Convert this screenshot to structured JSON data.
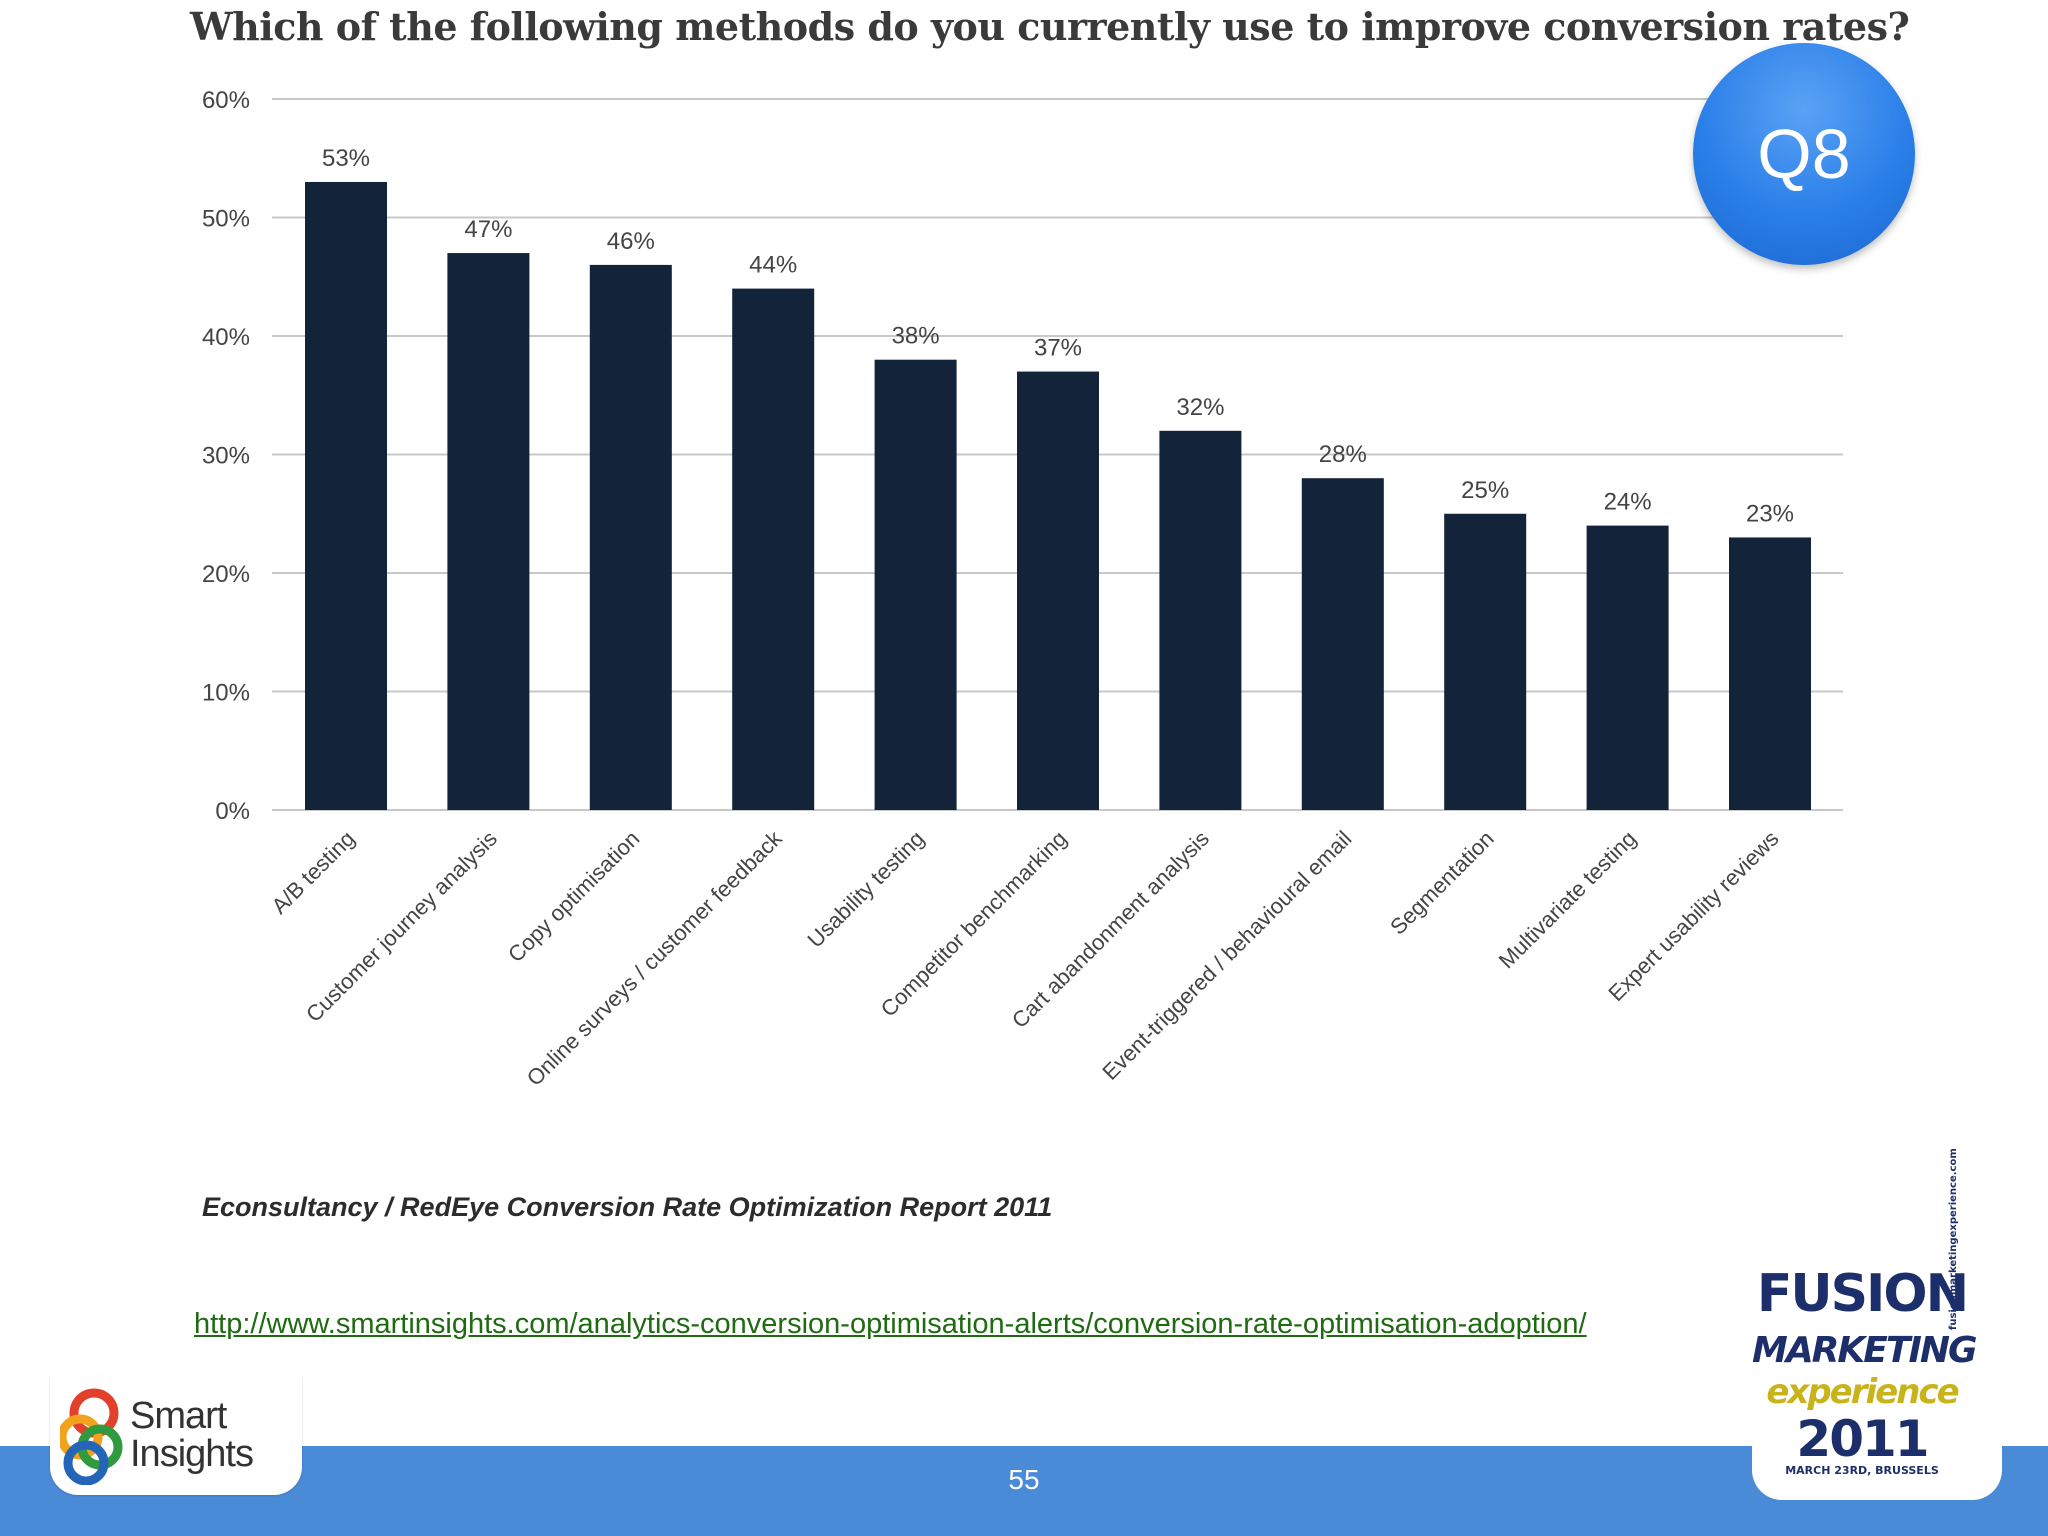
{
  "slide": {
    "badge": "Q8",
    "source_note": "Econsultancy / RedEye Conversion Rate Optimization  Report 2011",
    "link_text": "http://www.smartinsights.com/analytics-conversion-optimisation-alerts/conversion-rate-optimisation-adoption/",
    "page_number": "55",
    "logo_left": {
      "line1": "Smart",
      "line2": "Insights"
    },
    "logo_right": {
      "line1": "FUSION",
      "line2": "MARKETING",
      "line3": "experience",
      "year": "2011",
      "date": "MARCH 23RD, BRUSSELS",
      "side_url": "fusionmarketingexperience.com"
    }
  },
  "colors": {
    "bar": "#13233a",
    "grid": "#c8c8c8",
    "footer": "#4a8bd8",
    "badge": "#2a7fe8",
    "link": "#1f6b12"
  },
  "chart_data": {
    "type": "bar",
    "title": "Which of the following methods do you currently use to improve conversion rates?",
    "xlabel": "",
    "ylabel": "",
    "ylim": [
      0,
      60
    ],
    "yticks": [
      "0%",
      "10%",
      "20%",
      "30%",
      "40%",
      "50%",
      "60%"
    ],
    "grid": true,
    "categories": [
      "A/B testing",
      "Customer journey analysis",
      "Copy optimisation",
      "Online surveys / customer feedback",
      "Usability testing",
      "Competitor benchmarking",
      "Cart abandonment analysis",
      "Event-triggered / behavioural email",
      "Segmentation",
      "Multivariate testing",
      "Expert usability reviews"
    ],
    "values": [
      53,
      47,
      46,
      44,
      38,
      37,
      32,
      28,
      25,
      24,
      23
    ],
    "value_labels": [
      "53%",
      "47%",
      "46%",
      "44%",
      "38%",
      "37%",
      "32%",
      "28%",
      "25%",
      "24%",
      "23%"
    ]
  }
}
